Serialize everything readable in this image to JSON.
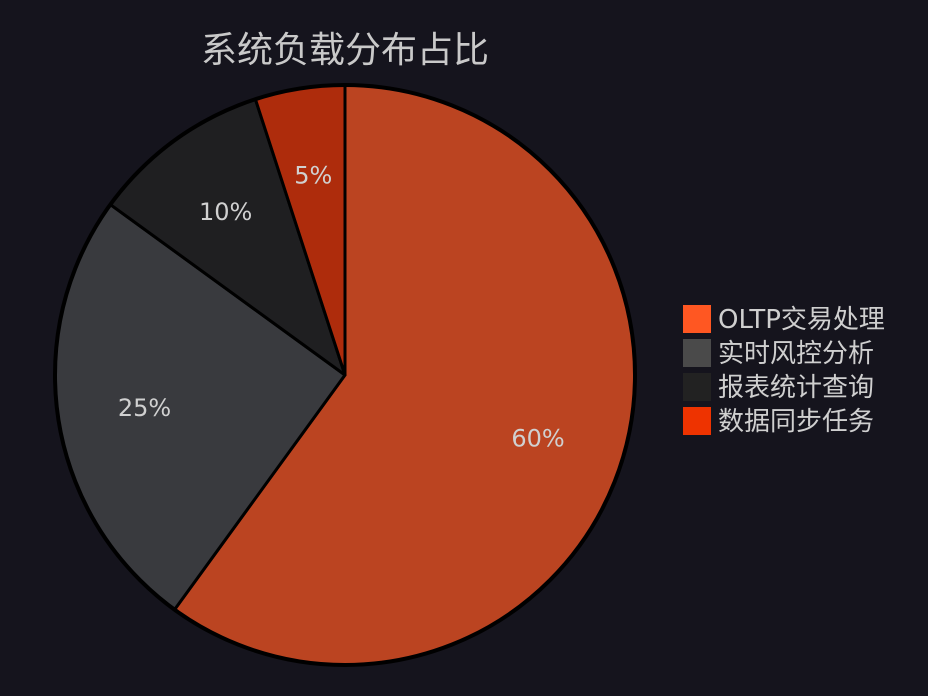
{
  "chart_data": {
    "type": "pie",
    "title": "系统负载分布占比",
    "categories": [
      "OLTP交易处理",
      "实时风控分析",
      "报表统计查询",
      "数据同步任务"
    ],
    "values": [
      60,
      25,
      10,
      5
    ],
    "value_labels": [
      "60%",
      "25%",
      "10%",
      "5%"
    ],
    "slice_colors": [
      "#bb4421",
      "#393a3e",
      "#1f1f21",
      "#ae2c0c"
    ],
    "legend_colors": [
      "#ff5722",
      "#4a4a4a",
      "#222222",
      "#ee3300"
    ],
    "start_angle": "top",
    "direction": "clockwise",
    "legend_position": "right"
  }
}
